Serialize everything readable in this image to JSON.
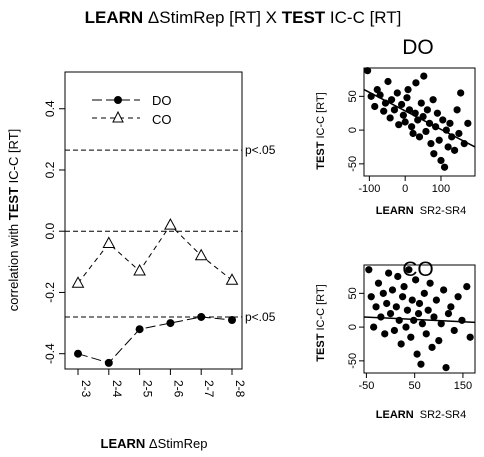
{
  "figure": {
    "title_bold_1": "LEARN",
    "title_mid": " ΔStimRep [RT] X ",
    "title_bold_2": "TEST",
    "title_end": " IC-C [RT]"
  },
  "chart_data": [
    {
      "type": "line",
      "title": "",
      "xlabel_bold": "LEARN",
      "xlabel_rest": " ΔStimRep",
      "ylabel_pre": "correlation with ",
      "ylabel_bold": "TEST",
      "ylabel_post": " IC-C [RT]",
      "categories": [
        "2-3",
        "2-4",
        "2-5",
        "2-6",
        "2-7",
        "2-8"
      ],
      "ylim": [
        -0.45,
        0.52
      ],
      "yticks": [
        {
          "value": 0.4,
          "label": "0.4"
        },
        {
          "value": 0.2,
          "label": "0.2"
        },
        {
          "value": 0.0,
          "label": "0.0"
        },
        {
          "value": -0.2,
          "label": "-0.2"
        },
        {
          "value": -0.4,
          "label": "-0.4"
        }
      ],
      "series": [
        {
          "name": "DO",
          "marker": "filled-circle",
          "line": "longdash",
          "values": [
            -0.4,
            -0.43,
            -0.32,
            -0.3,
            -0.28,
            -0.29
          ]
        },
        {
          "name": "CO",
          "marker": "open-triangle",
          "line": "dashed",
          "values": [
            -0.17,
            -0.04,
            -0.13,
            0.02,
            -0.08,
            -0.16
          ]
        }
      ],
      "reference_lines": [
        {
          "value": 0.265,
          "label": "p<.05"
        },
        {
          "value": 0.0,
          "label": ""
        },
        {
          "value": -0.28,
          "label": "p<.05"
        }
      ],
      "legend": {
        "placement": "top-left"
      }
    },
    {
      "type": "scatter",
      "title": "DO",
      "xlabel_bold": "LEARN",
      "xlabel_rest": "  SR2-SR4",
      "ylabel_bold": "TEST",
      "ylabel_rest": " IC-C [RT]",
      "xlim": [
        -115,
        195
      ],
      "ylim": [
        -68,
        92
      ],
      "xticks": [
        -100,
        0,
        100
      ],
      "yticks": [
        -50,
        0,
        50
      ],
      "regression": {
        "x": [
          -115,
          195
        ],
        "y": [
          60,
          -25
        ]
      },
      "points": [
        [
          -105,
          88
        ],
        [
          -95,
          50
        ],
        [
          -85,
          35
        ],
        [
          -78,
          60
        ],
        [
          -70,
          52
        ],
        [
          -60,
          28
        ],
        [
          -55,
          40
        ],
        [
          -48,
          72
        ],
        [
          -42,
          18
        ],
        [
          -38,
          45
        ],
        [
          -30,
          30
        ],
        [
          -22,
          55
        ],
        [
          -18,
          8
        ],
        [
          -10,
          38
        ],
        [
          -5,
          22
        ],
        [
          0,
          12
        ],
        [
          5,
          48
        ],
        [
          8,
          60
        ],
        [
          12,
          30
        ],
        [
          18,
          5
        ],
        [
          22,
          -5
        ],
        [
          28,
          25
        ],
        [
          30,
          70
        ],
        [
          35,
          15
        ],
        [
          40,
          -10
        ],
        [
          45,
          40
        ],
        [
          50,
          20
        ],
        [
          52,
          80
        ],
        [
          58,
          -2
        ],
        [
          62,
          30
        ],
        [
          68,
          10
        ],
        [
          72,
          -20
        ],
        [
          78,
          45
        ],
        [
          80,
          -35
        ],
        [
          85,
          5
        ],
        [
          90,
          25
        ],
        [
          95,
          -15
        ],
        [
          100,
          -45
        ],
        [
          105,
          15
        ],
        [
          110,
          -55
        ],
        [
          115,
          0
        ],
        [
          120,
          -25
        ],
        [
          125,
          10
        ],
        [
          130,
          -10
        ],
        [
          138,
          -30
        ],
        [
          145,
          30
        ],
        [
          150,
          -5
        ],
        [
          155,
          55
        ],
        [
          165,
          -20
        ],
        [
          175,
          10
        ]
      ]
    },
    {
      "type": "scatter",
      "title": "CO",
      "xlabel_bold": "LEARN",
      "xlabel_rest": "  SR2-SR4",
      "ylabel_bold": "TEST",
      "ylabel_rest": " IC-C [RT]",
      "xlim": [
        -55,
        175
      ],
      "ylim": [
        -68,
        92
      ],
      "xticks": [
        -50,
        50,
        150
      ],
      "yticks": [
        -50,
        0,
        50
      ],
      "regression": {
        "x": [
          -55,
          175
        ],
        "y": [
          15,
          7
        ]
      },
      "points": [
        [
          -45,
          85
        ],
        [
          -40,
          45
        ],
        [
          -35,
          0
        ],
        [
          -30,
          30
        ],
        [
          -25,
          65
        ],
        [
          -20,
          15
        ],
        [
          -15,
          50
        ],
        [
          -12,
          -10
        ],
        [
          -8,
          35
        ],
        [
          -4,
          80
        ],
        [
          0,
          20
        ],
        [
          4,
          55
        ],
        [
          8,
          -5
        ],
        [
          12,
          30
        ],
        [
          15,
          75
        ],
        [
          18,
          10
        ],
        [
          22,
          -25
        ],
        [
          25,
          45
        ],
        [
          28,
          60
        ],
        [
          32,
          0
        ],
        [
          35,
          25
        ],
        [
          38,
          85
        ],
        [
          42,
          -15
        ],
        [
          45,
          40
        ],
        [
          48,
          10
        ],
        [
          52,
          70
        ],
        [
          55,
          -40
        ],
        [
          58,
          20
        ],
        [
          60,
          35
        ],
        [
          63,
          -55
        ],
        [
          66,
          5
        ],
        [
          70,
          50
        ],
        [
          74,
          -10
        ],
        [
          78,
          25
        ],
        [
          82,
          65
        ],
        [
          86,
          -30
        ],
        [
          90,
          15
        ],
        [
          95,
          40
        ],
        [
          100,
          -20
        ],
        [
          105,
          5
        ],
        [
          110,
          55
        ],
        [
          115,
          -60
        ],
        [
          120,
          20
        ],
        [
          125,
          30
        ],
        [
          132,
          -5
        ],
        [
          140,
          45
        ],
        [
          148,
          10
        ],
        [
          158,
          60
        ],
        [
          165,
          -15
        ]
      ]
    }
  ]
}
